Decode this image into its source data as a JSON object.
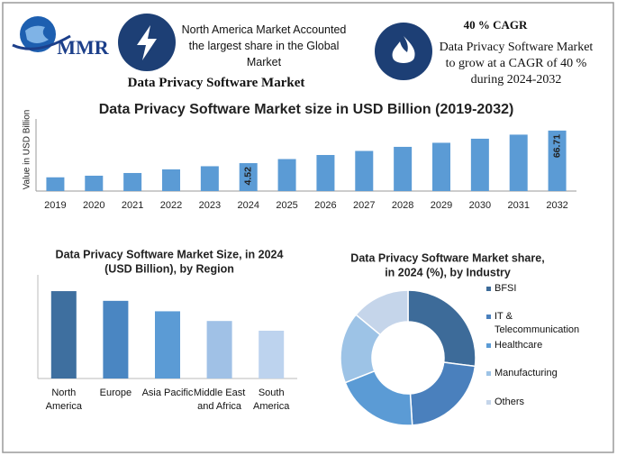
{
  "header": {
    "logo": "MMR",
    "highlight": "North America Market Accounted the largest share in the Global Market",
    "market": "Data Privacy Software Market",
    "cagr_title": "40 % CAGR",
    "cagr_text": "Data Privacy Software Market to grow at a CAGR of 40 % during 2024-2032"
  },
  "chart_data": [
    {
      "type": "bar",
      "title": "Data Privacy Software  Market size in USD Billion (2019-2032)",
      "y_label": "Value in USD Billion",
      "categories": [
        "2019",
        "2020",
        "2021",
        "2022",
        "2023",
        "2024",
        "2025",
        "2026",
        "2027",
        "2028",
        "2029",
        "2030",
        "2031",
        "2032"
      ],
      "values": [
        1.4,
        1.6,
        2.0,
        2.7,
        3.5,
        4.52,
        6.33,
        8.86,
        12.4,
        17.37,
        24.31,
        34.04,
        47.65,
        66.71
      ],
      "value_labels": [
        null,
        null,
        null,
        null,
        null,
        "4.52",
        null,
        null,
        null,
        null,
        null,
        null,
        null,
        "66.71"
      ],
      "color": "#5b9bd5",
      "ylim": [
        0.45,
        96
      ],
      "log": true
    },
    {
      "type": "bar",
      "title": [
        "Data Privacy Software  Market  Size, in 2024",
        "(USD Billion), by Region"
      ],
      "categories": [
        "North America",
        "Europe",
        "Asia Pacific",
        "Middle East and Africa",
        "South America"
      ],
      "values": [
        1.17,
        1.04,
        0.9,
        0.77,
        0.64
      ],
      "colors": [
        "#3e6f9f",
        "#4a86c2",
        "#5b9bd5",
        "#a0c1e6",
        "#bdd3ee"
      ],
      "ylim": [
        0,
        1.4
      ]
    },
    {
      "type": "donut",
      "title": [
        "Data Privacy Software  Market share,",
        "in 2024 (%), by Industry"
      ],
      "categories": [
        "BFSI",
        "IT & Telecommunication",
        "Healthcare",
        "Manufacturing",
        "Others"
      ],
      "values": [
        27,
        22,
        20,
        17,
        14
      ],
      "colors": [
        "#3d6b99",
        "#4a80bd",
        "#5b9bd5",
        "#9dc3e6",
        "#c5d5ea"
      ]
    }
  ]
}
